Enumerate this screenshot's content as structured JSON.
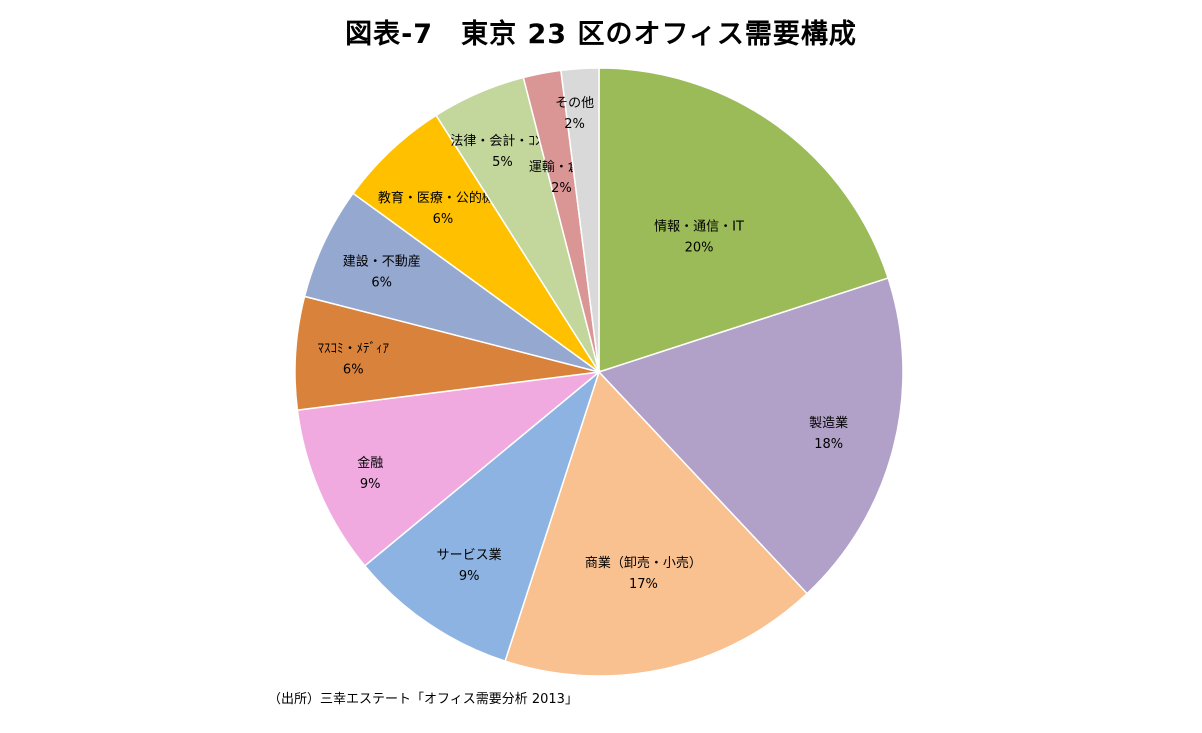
{
  "chart_data": {
    "type": "pie",
    "title": "図表-7　東京 23 区のオフィス需要構成",
    "slices": [
      {
        "label": "情報・通信・IT",
        "value": 20,
        "value_label": "20%",
        "color": "#9bbb59"
      },
      {
        "label": "製造業",
        "value": 18,
        "value_label": "18%",
        "color": "#b1a0c7"
      },
      {
        "label": "商業（卸売・小売）",
        "value": 17,
        "value_label": "17%",
        "color": "#f9c090"
      },
      {
        "label": "サービス業",
        "value": 9,
        "value_label": "9%",
        "color": "#8db3e2"
      },
      {
        "label": "金融",
        "value": 9,
        "value_label": "9%",
        "color": "#f0aae0"
      },
      {
        "label": "ﾏｽｺﾐ・ﾒﾃﾞｨｱ",
        "value": 6,
        "value_label": "6%",
        "color": "#d9823b"
      },
      {
        "label": "建設・不動産",
        "value": 6,
        "value_label": "6%",
        "color": "#95a8cf"
      },
      {
        "label": "教育・医療・公的機関",
        "value": 6,
        "value_label": "6%",
        "color": "#ffc000"
      },
      {
        "label": "法律・会計・ｺﾝｻﾙ",
        "value": 5,
        "value_label": "5%",
        "color": "#c3d69b"
      },
      {
        "label": "運輸・倉庫",
        "value": 2,
        "value_label": "2%",
        "color": "#da9694"
      },
      {
        "label": "その他",
        "value": 2,
        "value_label": "2%",
        "color": "#d9d9d9"
      }
    ],
    "start": "12 o'clock",
    "direction": "clockwise",
    "legend": "none",
    "source": "（出所）三幸エステート「オフィス需要分析 2013」"
  }
}
